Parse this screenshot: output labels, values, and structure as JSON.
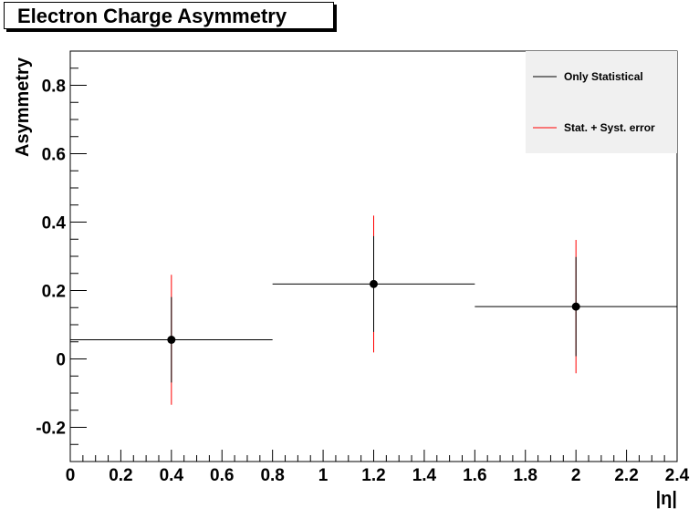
{
  "chart_data": {
    "type": "scatter",
    "title": "Electron Charge Asymmetry",
    "xlabel": "|η|",
    "ylabel": "Asymmetry",
    "xlim": [
      0,
      2.4
    ],
    "ylim": [
      -0.3,
      0.9
    ],
    "x_ticks": [
      "0",
      "0.2",
      "0.4",
      "0.6",
      "0.8",
      "1",
      "1.2",
      "1.4",
      "1.6",
      "1.8",
      "2",
      "2.2",
      "2.4"
    ],
    "x_tick_values": [
      0,
      0.2,
      0.4,
      0.6,
      0.8,
      1.0,
      1.2,
      1.4,
      1.6,
      1.8,
      2.0,
      2.2,
      2.4
    ],
    "y_ticks": [
      "-0.2",
      "0",
      "0.2",
      "0.4",
      "0.6",
      "0.8"
    ],
    "y_tick_values": [
      -0.2,
      0,
      0.2,
      0.4,
      0.6,
      0.8
    ],
    "grid": false,
    "legend_position": "top-right",
    "legend": [
      {
        "label": "Only Statistical",
        "color": "#000000"
      },
      {
        "label": "Stat. + Syst. error",
        "color": "#ff0000"
      }
    ],
    "points": [
      {
        "x": 0.4,
        "y": 0.056,
        "x_low": 0.0,
        "x_high": 0.8,
        "stat_err": 0.125,
        "total_err": 0.19
      },
      {
        "x": 1.2,
        "y": 0.219,
        "x_low": 0.8,
        "x_high": 1.6,
        "stat_err": 0.14,
        "total_err": 0.2
      },
      {
        "x": 2.0,
        "y": 0.153,
        "x_low": 1.6,
        "x_high": 2.4,
        "stat_err": 0.145,
        "total_err": 0.195
      }
    ],
    "colors": {
      "stat": "#000000",
      "syst": "#ff0000",
      "legend_bg": "#f0f0f0"
    }
  }
}
